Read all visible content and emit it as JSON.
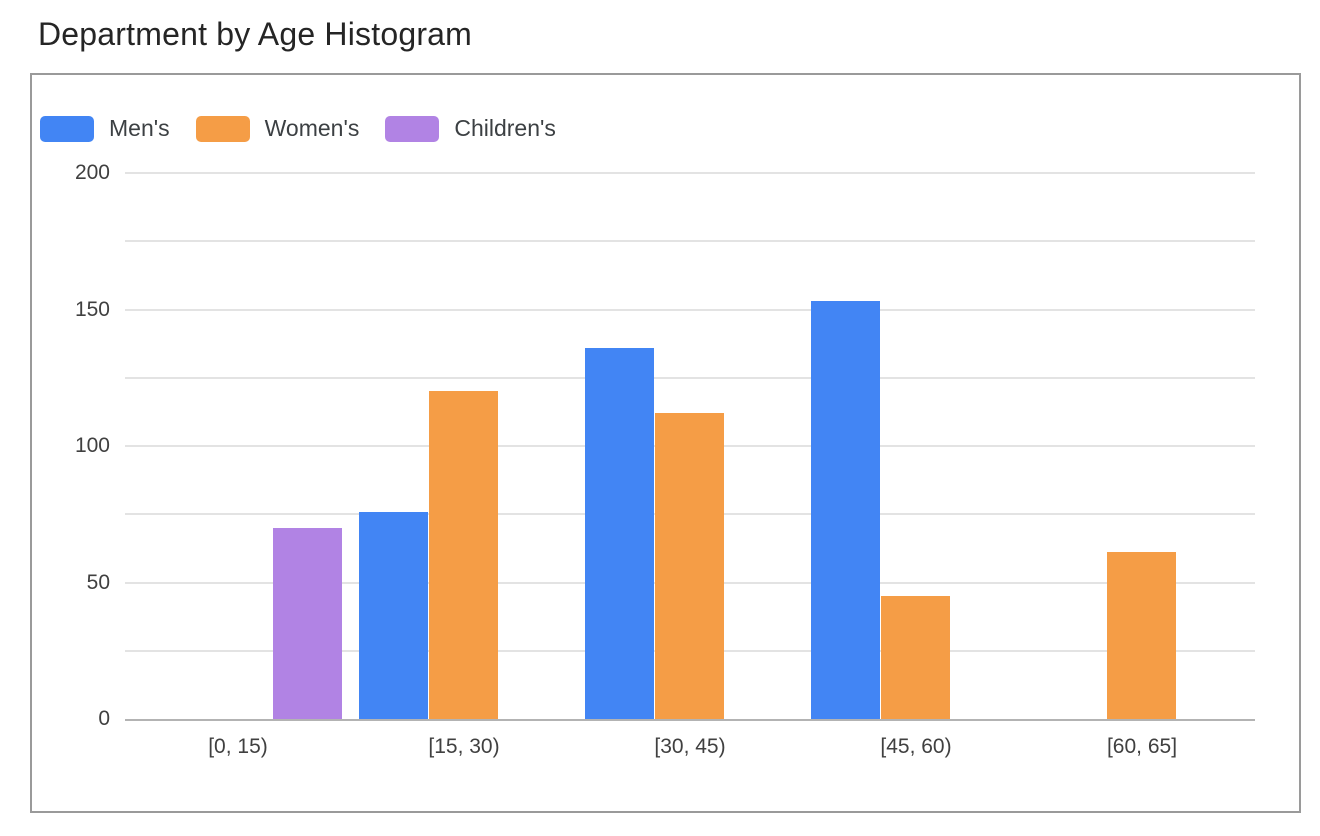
{
  "chart_data": {
    "type": "bar",
    "title": "Department by Age Histogram",
    "categories": [
      "[0, 15)",
      "[15, 30)",
      "[30, 45)",
      "[45, 60)",
      "[60, 65]"
    ],
    "series": [
      {
        "name": "Men's",
        "color": "#4285F4",
        "values": [
          0,
          76,
          136,
          153,
          0
        ]
      },
      {
        "name": "Women's",
        "color": "#F59D46",
        "values": [
          0,
          120,
          112,
          45,
          61
        ]
      },
      {
        "name": "Children's",
        "color": "#B183E4",
        "values": [
          70,
          0,
          0,
          0,
          0
        ]
      }
    ],
    "xlabel": "",
    "ylabel": "",
    "ylim": [
      0,
      200
    ],
    "y_grid_step": 25,
    "y_labeled_ticks": [
      0,
      50,
      100,
      150,
      200
    ],
    "grid": true,
    "legend_position": "top-left"
  },
  "style": {
    "grid_color": "#E3E3E3",
    "baseline_color": "#B3B3B3",
    "card_border_color": "#9A9A9A",
    "title_color": "#252525",
    "tick_label_color": "#404040",
    "legend_label_color": "#3C4043"
  }
}
